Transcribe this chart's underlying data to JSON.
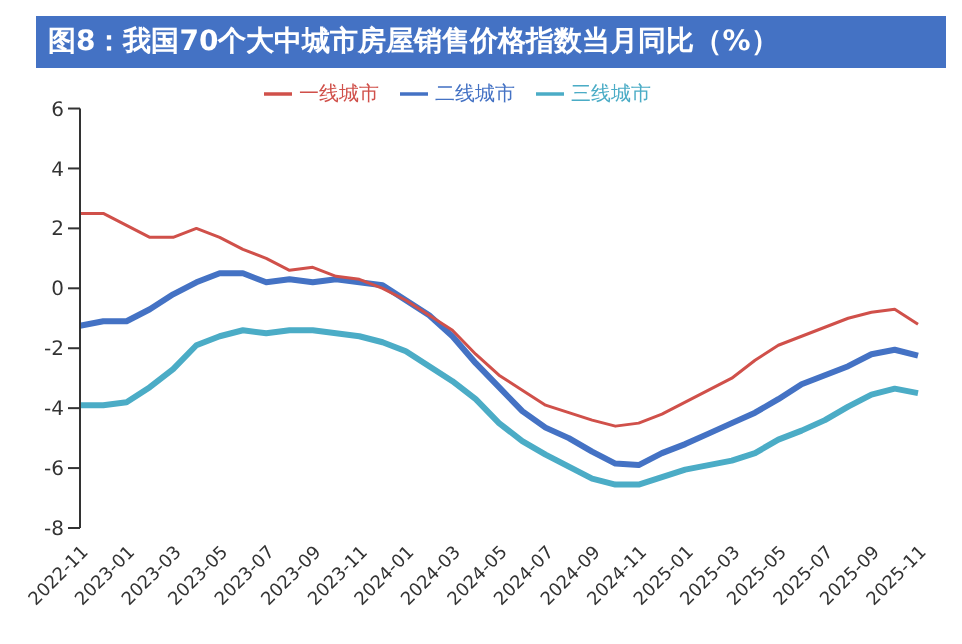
{
  "chart_data": {
    "type": "line",
    "title": "图8：我国70个大中城市房屋销售价格指数当月同比（%）",
    "categories": [
      "2022-11",
      null,
      "2023-01",
      null,
      "2023-03",
      null,
      "2023-05",
      null,
      "2023-07",
      null,
      "2023-09",
      null,
      "2023-11",
      null,
      "2024-01",
      null,
      "2024-03",
      null,
      "2024-05",
      null,
      "2024-07",
      null,
      "2024-09",
      null,
      "2024-11",
      null,
      "2025-01",
      null,
      "2025-03",
      null,
      "2025-05",
      null,
      "2025-07",
      null,
      "2025-09",
      null,
      "2025-11"
    ],
    "series": [
      {
        "name": "一线城市",
        "color": "#d0504a",
        "values": [
          2.5,
          2.5,
          2.1,
          1.7,
          1.7,
          2.0,
          1.7,
          1.3,
          1.0,
          0.6,
          0.7,
          0.4,
          0.3,
          0.0,
          -0.4,
          -0.9,
          -1.4,
          -2.2,
          -2.9,
          -3.4,
          -3.9,
          -4.15,
          -4.4,
          -4.6,
          -4.5,
          -4.2,
          -3.8,
          -3.4,
          -3.0,
          -2.4,
          -1.9,
          -1.6,
          -1.3,
          -1.0,
          -0.8,
          -0.7,
          -1.2
        ]
      },
      {
        "name": "二线城市",
        "color": "#4472c4",
        "values": [
          -1.25,
          -1.1,
          -1.1,
          -0.7,
          -0.2,
          0.2,
          0.5,
          0.5,
          0.2,
          0.3,
          0.2,
          0.3,
          0.2,
          0.1,
          -0.4,
          -0.9,
          -1.6,
          -2.5,
          -3.3,
          -4.1,
          -4.65,
          -5.0,
          -5.45,
          -5.85,
          -5.9,
          -5.5,
          -5.2,
          -4.85,
          -4.5,
          -4.15,
          -3.7,
          -3.2,
          -2.9,
          -2.6,
          -2.2,
          -2.05,
          -2.25
        ]
      },
      {
        "name": "三线城市",
        "color": "#4bacc6",
        "values": [
          -3.9,
          -3.9,
          -3.8,
          -3.3,
          -2.7,
          -1.9,
          -1.6,
          -1.4,
          -1.5,
          -1.4,
          -1.4,
          -1.5,
          -1.6,
          -1.8,
          -2.1,
          -2.6,
          -3.1,
          -3.7,
          -4.5,
          -5.1,
          -5.55,
          -5.95,
          -6.35,
          -6.55,
          -6.55,
          -6.3,
          -6.05,
          -5.9,
          -5.75,
          -5.5,
          -5.05,
          -4.75,
          -4.4,
          -3.95,
          -3.55,
          -3.35,
          -3.5
        ]
      }
    ],
    "ylim": [
      -8,
      6
    ],
    "yticks": [
      -8,
      -6,
      -4,
      -2,
      0,
      2,
      4,
      6
    ],
    "grid": false,
    "legend": "top",
    "marker": "none",
    "line_style": "solid"
  }
}
